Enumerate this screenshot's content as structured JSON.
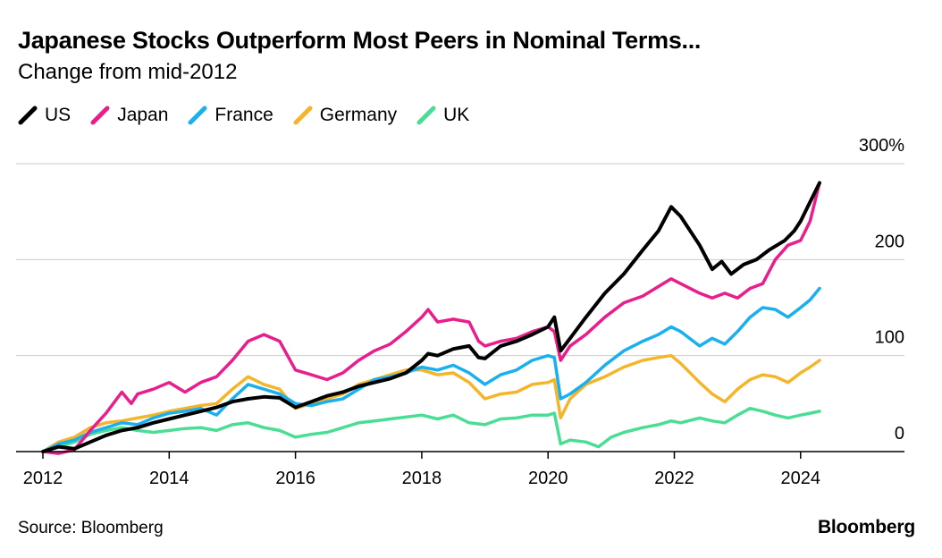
{
  "header": {
    "title": "Japanese Stocks Outperform Most Peers in Nominal Terms...",
    "subtitle": "Change from mid-2012"
  },
  "footer": {
    "source": "Source: Bloomberg",
    "brand": "Bloomberg"
  },
  "chart_data": {
    "type": "line",
    "title": "Japanese Stocks Outperform Most Peers in Nominal Terms...",
    "subtitle": "Change from mid-2012",
    "xlabel": "",
    "ylabel": "",
    "xlim": [
      2012,
      2025.5
    ],
    "ylim": [
      0,
      300
    ],
    "x_ticks": [
      "2012",
      "2014",
      "2016",
      "2018",
      "2020",
      "2022",
      "2024"
    ],
    "y_ticks": [
      "0",
      "100",
      "200",
      "300%"
    ],
    "grid": true,
    "legend_position": "top-left",
    "series": [
      {
        "name": "US",
        "color": "#000000",
        "points": [
          [
            2012.0,
            0
          ],
          [
            2012.25,
            5
          ],
          [
            2012.5,
            3
          ],
          [
            2012.75,
            10
          ],
          [
            2013.0,
            17
          ],
          [
            2013.25,
            22
          ],
          [
            2013.5,
            25
          ],
          [
            2013.75,
            30
          ],
          [
            2014.0,
            34
          ],
          [
            2014.25,
            38
          ],
          [
            2014.5,
            42
          ],
          [
            2014.75,
            46
          ],
          [
            2015.0,
            52
          ],
          [
            2015.25,
            55
          ],
          [
            2015.5,
            57
          ],
          [
            2015.75,
            56
          ],
          [
            2016.0,
            46
          ],
          [
            2016.25,
            52
          ],
          [
            2016.5,
            58
          ],
          [
            2016.75,
            62
          ],
          [
            2017.0,
            68
          ],
          [
            2017.25,
            72
          ],
          [
            2017.5,
            76
          ],
          [
            2017.75,
            82
          ],
          [
            2018.0,
            95
          ],
          [
            2018.1,
            102
          ],
          [
            2018.25,
            100
          ],
          [
            2018.5,
            107
          ],
          [
            2018.75,
            110
          ],
          [
            2018.9,
            98
          ],
          [
            2019.0,
            97
          ],
          [
            2019.25,
            110
          ],
          [
            2019.5,
            115
          ],
          [
            2019.75,
            122
          ],
          [
            2020.0,
            130
          ],
          [
            2020.1,
            140
          ],
          [
            2020.2,
            105
          ],
          [
            2020.35,
            118
          ],
          [
            2020.6,
            140
          ],
          [
            2020.9,
            165
          ],
          [
            2021.2,
            185
          ],
          [
            2021.5,
            210
          ],
          [
            2021.75,
            230
          ],
          [
            2021.95,
            255
          ],
          [
            2022.1,
            245
          ],
          [
            2022.4,
            215
          ],
          [
            2022.6,
            190
          ],
          [
            2022.75,
            198
          ],
          [
            2022.9,
            185
          ],
          [
            2023.1,
            195
          ],
          [
            2023.3,
            200
          ],
          [
            2023.5,
            210
          ],
          [
            2023.75,
            220
          ],
          [
            2023.9,
            230
          ],
          [
            2024.0,
            240
          ],
          [
            2024.15,
            260
          ],
          [
            2024.3,
            280
          ]
        ]
      },
      {
        "name": "Japan",
        "color": "#e91e8c",
        "points": [
          [
            2012.0,
            0
          ],
          [
            2012.25,
            -2
          ],
          [
            2012.5,
            2
          ],
          [
            2012.75,
            22
          ],
          [
            2013.0,
            40
          ],
          [
            2013.25,
            62
          ],
          [
            2013.4,
            50
          ],
          [
            2013.5,
            60
          ],
          [
            2013.75,
            65
          ],
          [
            2014.0,
            72
          ],
          [
            2014.25,
            62
          ],
          [
            2014.5,
            72
          ],
          [
            2014.75,
            78
          ],
          [
            2015.0,
            95
          ],
          [
            2015.25,
            115
          ],
          [
            2015.5,
            122
          ],
          [
            2015.75,
            115
          ],
          [
            2016.0,
            85
          ],
          [
            2016.25,
            80
          ],
          [
            2016.5,
            75
          ],
          [
            2016.75,
            82
          ],
          [
            2017.0,
            95
          ],
          [
            2017.25,
            105
          ],
          [
            2017.5,
            112
          ],
          [
            2017.75,
            125
          ],
          [
            2018.0,
            140
          ],
          [
            2018.1,
            148
          ],
          [
            2018.25,
            135
          ],
          [
            2018.5,
            138
          ],
          [
            2018.75,
            135
          ],
          [
            2018.9,
            115
          ],
          [
            2019.0,
            110
          ],
          [
            2019.25,
            115
          ],
          [
            2019.5,
            118
          ],
          [
            2019.75,
            125
          ],
          [
            2020.0,
            130
          ],
          [
            2020.1,
            125
          ],
          [
            2020.2,
            95
          ],
          [
            2020.35,
            110
          ],
          [
            2020.6,
            122
          ],
          [
            2020.9,
            140
          ],
          [
            2021.2,
            155
          ],
          [
            2021.5,
            162
          ],
          [
            2021.75,
            172
          ],
          [
            2021.95,
            180
          ],
          [
            2022.1,
            175
          ],
          [
            2022.4,
            165
          ],
          [
            2022.6,
            160
          ],
          [
            2022.8,
            165
          ],
          [
            2023.0,
            160
          ],
          [
            2023.2,
            170
          ],
          [
            2023.4,
            175
          ],
          [
            2023.6,
            200
          ],
          [
            2023.8,
            215
          ],
          [
            2024.0,
            220
          ],
          [
            2024.15,
            240
          ],
          [
            2024.3,
            280
          ]
        ]
      },
      {
        "name": "France",
        "color": "#1ab0ef",
        "points": [
          [
            2012.0,
            0
          ],
          [
            2012.25,
            8
          ],
          [
            2012.5,
            12
          ],
          [
            2012.75,
            20
          ],
          [
            2013.0,
            25
          ],
          [
            2013.25,
            30
          ],
          [
            2013.5,
            28
          ],
          [
            2013.75,
            35
          ],
          [
            2014.0,
            40
          ],
          [
            2014.25,
            42
          ],
          [
            2014.5,
            45
          ],
          [
            2014.75,
            38
          ],
          [
            2015.0,
            55
          ],
          [
            2015.25,
            70
          ],
          [
            2015.5,
            65
          ],
          [
            2015.75,
            60
          ],
          [
            2016.0,
            50
          ],
          [
            2016.25,
            48
          ],
          [
            2016.5,
            52
          ],
          [
            2016.75,
            55
          ],
          [
            2017.0,
            65
          ],
          [
            2017.25,
            75
          ],
          [
            2017.5,
            78
          ],
          [
            2017.75,
            82
          ],
          [
            2018.0,
            88
          ],
          [
            2018.25,
            85
          ],
          [
            2018.5,
            90
          ],
          [
            2018.75,
            82
          ],
          [
            2019.0,
            70
          ],
          [
            2019.25,
            80
          ],
          [
            2019.5,
            85
          ],
          [
            2019.75,
            95
          ],
          [
            2020.0,
            100
          ],
          [
            2020.1,
            98
          ],
          [
            2020.2,
            55
          ],
          [
            2020.35,
            60
          ],
          [
            2020.6,
            72
          ],
          [
            2020.9,
            90
          ],
          [
            2021.2,
            105
          ],
          [
            2021.5,
            115
          ],
          [
            2021.75,
            122
          ],
          [
            2021.95,
            130
          ],
          [
            2022.1,
            125
          ],
          [
            2022.4,
            110
          ],
          [
            2022.6,
            118
          ],
          [
            2022.8,
            112
          ],
          [
            2023.0,
            125
          ],
          [
            2023.2,
            140
          ],
          [
            2023.4,
            150
          ],
          [
            2023.6,
            148
          ],
          [
            2023.8,
            140
          ],
          [
            2024.0,
            150
          ],
          [
            2024.15,
            158
          ],
          [
            2024.3,
            170
          ]
        ]
      },
      {
        "name": "Germany",
        "color": "#f5b52a",
        "points": [
          [
            2012.0,
            0
          ],
          [
            2012.25,
            10
          ],
          [
            2012.5,
            15
          ],
          [
            2012.75,
            25
          ],
          [
            2013.0,
            30
          ],
          [
            2013.25,
            32
          ],
          [
            2013.5,
            35
          ],
          [
            2013.75,
            38
          ],
          [
            2014.0,
            42
          ],
          [
            2014.25,
            45
          ],
          [
            2014.5,
            48
          ],
          [
            2014.75,
            50
          ],
          [
            2015.0,
            65
          ],
          [
            2015.25,
            78
          ],
          [
            2015.5,
            70
          ],
          [
            2015.75,
            65
          ],
          [
            2016.0,
            45
          ],
          [
            2016.25,
            50
          ],
          [
            2016.5,
            55
          ],
          [
            2016.75,
            60
          ],
          [
            2017.0,
            70
          ],
          [
            2017.25,
            75
          ],
          [
            2017.5,
            80
          ],
          [
            2017.75,
            85
          ],
          [
            2018.0,
            85
          ],
          [
            2018.25,
            80
          ],
          [
            2018.5,
            82
          ],
          [
            2018.75,
            72
          ],
          [
            2019.0,
            55
          ],
          [
            2019.25,
            60
          ],
          [
            2019.5,
            62
          ],
          [
            2019.75,
            70
          ],
          [
            2020.0,
            72
          ],
          [
            2020.1,
            75
          ],
          [
            2020.2,
            35
          ],
          [
            2020.35,
            55
          ],
          [
            2020.6,
            70
          ],
          [
            2020.9,
            78
          ],
          [
            2021.2,
            88
          ],
          [
            2021.5,
            95
          ],
          [
            2021.75,
            98
          ],
          [
            2021.95,
            100
          ],
          [
            2022.1,
            92
          ],
          [
            2022.4,
            72
          ],
          [
            2022.6,
            60
          ],
          [
            2022.8,
            52
          ],
          [
            2023.0,
            65
          ],
          [
            2023.2,
            75
          ],
          [
            2023.4,
            80
          ],
          [
            2023.6,
            78
          ],
          [
            2023.8,
            72
          ],
          [
            2024.0,
            82
          ],
          [
            2024.15,
            88
          ],
          [
            2024.3,
            95
          ]
        ]
      },
      {
        "name": "UK",
        "color": "#4ade94",
        "points": [
          [
            2012.0,
            0
          ],
          [
            2012.25,
            5
          ],
          [
            2012.5,
            10
          ],
          [
            2012.75,
            18
          ],
          [
            2013.0,
            22
          ],
          [
            2013.25,
            25
          ],
          [
            2013.5,
            22
          ],
          [
            2013.75,
            20
          ],
          [
            2014.0,
            22
          ],
          [
            2014.25,
            24
          ],
          [
            2014.5,
            25
          ],
          [
            2014.75,
            22
          ],
          [
            2015.0,
            28
          ],
          [
            2015.25,
            30
          ],
          [
            2015.5,
            25
          ],
          [
            2015.75,
            22
          ],
          [
            2016.0,
            15
          ],
          [
            2016.25,
            18
          ],
          [
            2016.5,
            20
          ],
          [
            2016.75,
            25
          ],
          [
            2017.0,
            30
          ],
          [
            2017.25,
            32
          ],
          [
            2017.5,
            34
          ],
          [
            2017.75,
            36
          ],
          [
            2018.0,
            38
          ],
          [
            2018.25,
            34
          ],
          [
            2018.5,
            38
          ],
          [
            2018.75,
            30
          ],
          [
            2019.0,
            28
          ],
          [
            2019.25,
            34
          ],
          [
            2019.5,
            35
          ],
          [
            2019.75,
            38
          ],
          [
            2020.0,
            38
          ],
          [
            2020.1,
            40
          ],
          [
            2020.2,
            8
          ],
          [
            2020.35,
            12
          ],
          [
            2020.6,
            10
          ],
          [
            2020.8,
            5
          ],
          [
            2021.0,
            15
          ],
          [
            2021.2,
            20
          ],
          [
            2021.5,
            25
          ],
          [
            2021.75,
            28
          ],
          [
            2021.95,
            32
          ],
          [
            2022.1,
            30
          ],
          [
            2022.4,
            35
          ],
          [
            2022.6,
            32
          ],
          [
            2022.8,
            30
          ],
          [
            2023.0,
            38
          ],
          [
            2023.2,
            45
          ],
          [
            2023.4,
            42
          ],
          [
            2023.6,
            38
          ],
          [
            2023.8,
            35
          ],
          [
            2024.0,
            38
          ],
          [
            2024.15,
            40
          ],
          [
            2024.3,
            42
          ]
        ]
      }
    ]
  }
}
